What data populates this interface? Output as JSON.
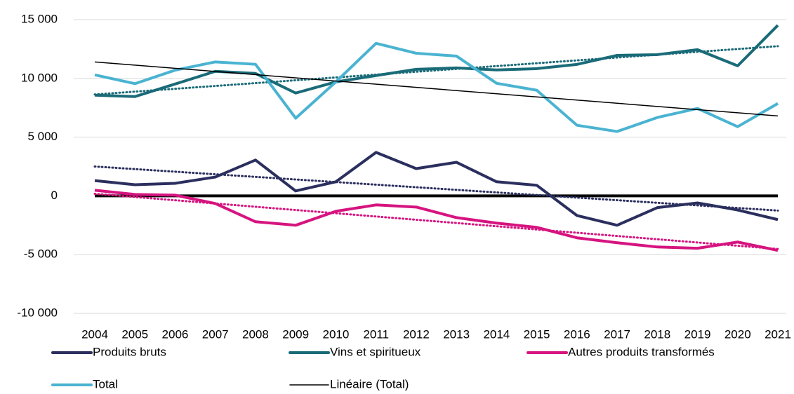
{
  "chart_data": {
    "type": "line",
    "categories": [
      "2004",
      "2005",
      "2006",
      "2007",
      "2008",
      "2009",
      "2010",
      "2011",
      "2012",
      "2013",
      "2014",
      "2015",
      "2016",
      "2017",
      "2018",
      "2019",
      "2020",
      "2021"
    ],
    "series": [
      {
        "name": "Produits bruts",
        "color": "#2b2f5e",
        "values": [
          1300,
          950,
          1070,
          1600,
          3050,
          420,
          1200,
          3700,
          2320,
          2860,
          1200,
          900,
          -1670,
          -2500,
          -1000,
          -600,
          -1200,
          -2020
        ]
      },
      {
        "name": "Vins et spiritueux",
        "color": "#1a6b78",
        "values": [
          8570,
          8450,
          9520,
          10600,
          10420,
          8750,
          9700,
          10240,
          10770,
          10890,
          10720,
          10830,
          11190,
          11960,
          12020,
          12440,
          11070,
          14520
        ]
      },
      {
        "name": "Autres produits transformés",
        "color": "#d6147f",
        "values": [
          480,
          120,
          60,
          -650,
          -2200,
          -2500,
          -1310,
          -770,
          -950,
          -1850,
          -2320,
          -2680,
          -3570,
          -3990,
          -4350,
          -4460,
          -3930,
          -4640
        ]
      },
      {
        "name": "Total",
        "color": "#4ab3d1",
        "values": [
          10300,
          9550,
          10700,
          11400,
          11200,
          6610,
          9700,
          12980,
          12140,
          11900,
          9580,
          8990,
          6010,
          5480,
          6670,
          7440,
          5890,
          7860
        ]
      }
    ],
    "trendlines": [
      {
        "name": "Linéaire (Total)",
        "color": "#000000",
        "style": "solid",
        "x": [
          "2004",
          "2021"
        ],
        "values": [
          11400,
          6800
        ]
      },
      {
        "color": "#2b2f5e",
        "style": "dotted",
        "x": [
          "2004",
          "2021"
        ],
        "values": [
          2500,
          -1250
        ]
      },
      {
        "color": "#1a6b78",
        "style": "dotted",
        "x": [
          "2004",
          "2021"
        ],
        "values": [
          8630,
          12740
        ]
      },
      {
        "color": "#d6147f",
        "style": "dotted",
        "x": [
          "2004",
          "2021"
        ],
        "values": [
          180,
          -4520
        ]
      }
    ],
    "ylim": [
      -10000,
      15000
    ],
    "yticks": [
      {
        "value": -10000,
        "label": "-10 000"
      },
      {
        "value": -5000,
        "label": "-5 000"
      },
      0,
      {
        "value": 5000,
        "label": "5 000"
      },
      {
        "value": 10000,
        "label": "10 000"
      },
      {
        "value": 15000,
        "label": "15 000"
      }
    ],
    "grid": true,
    "legend": "bottom"
  }
}
